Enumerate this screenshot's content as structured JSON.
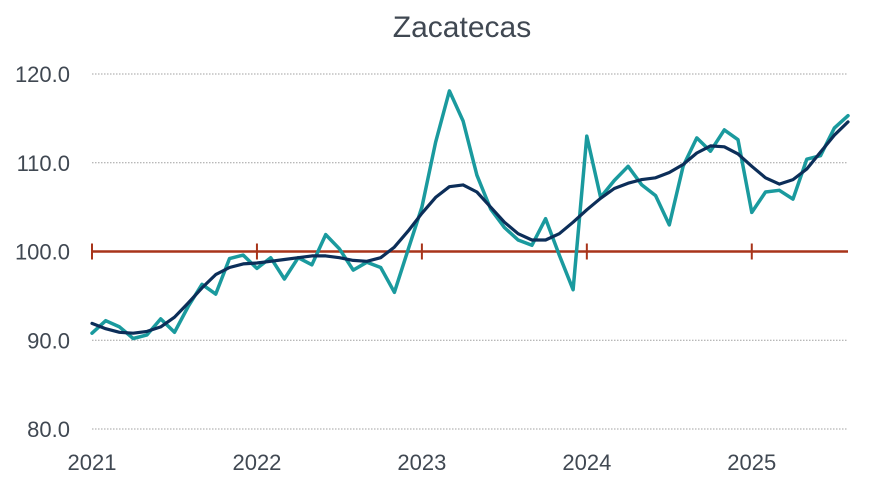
{
  "chart_data": {
    "type": "line",
    "title": "Zacatecas",
    "xlabel": "",
    "ylabel": "",
    "x_tick_labels": [
      "2021",
      "2022",
      "2023",
      "2024",
      "2025"
    ],
    "x_tick_dates": [
      2021,
      2022,
      2023,
      2024,
      2025
    ],
    "y_tick_labels": [
      "80.0",
      "90.0",
      "100.0",
      "110.0",
      "120.0"
    ],
    "y_tick_values": [
      80,
      90,
      100,
      110,
      120
    ],
    "xlim": [
      "2021-01",
      "2025-08"
    ],
    "ylim": [
      80,
      120
    ],
    "grid": "horizontal dotted",
    "legend": "none",
    "x": [
      "2021-01",
      "2021-02",
      "2021-03",
      "2021-04",
      "2021-05",
      "2021-06",
      "2021-07",
      "2021-08",
      "2021-09",
      "2021-10",
      "2021-11",
      "2021-12",
      "2022-01",
      "2022-02",
      "2022-03",
      "2022-04",
      "2022-05",
      "2022-06",
      "2022-07",
      "2022-08",
      "2022-09",
      "2022-10",
      "2022-11",
      "2022-12",
      "2023-01",
      "2023-02",
      "2023-03",
      "2023-04",
      "2023-05",
      "2023-06",
      "2023-07",
      "2023-08",
      "2023-09",
      "2023-10",
      "2023-11",
      "2023-12",
      "2024-01",
      "2024-02",
      "2024-03",
      "2024-04",
      "2024-05",
      "2024-06",
      "2024-07",
      "2024-08",
      "2024-09",
      "2024-10",
      "2024-11",
      "2024-12",
      "2025-01",
      "2025-02",
      "2025-03",
      "2025-04",
      "2025-05",
      "2025-06",
      "2025-07",
      "2025-08"
    ],
    "series": [
      {
        "color": "#1a9a9e",
        "values": [
          90.8,
          92.2,
          91.5,
          90.2,
          90.6,
          92.4,
          90.9,
          93.8,
          96.3,
          95.2,
          99.2,
          99.6,
          98.1,
          99.3,
          96.9,
          99.3,
          98.5,
          101.9,
          100.3,
          97.9,
          98.8,
          98.2,
          95.4,
          100.2,
          105.0,
          112.3,
          118.1,
          114.7,
          108.6,
          104.8,
          102.7,
          101.3,
          100.7,
          103.7,
          99.6,
          95.7,
          113.0,
          106.1,
          108.0,
          109.6,
          107.5,
          106.3,
          103.0,
          109.6,
          112.8,
          111.3,
          113.7,
          112.6,
          104.4,
          106.7,
          106.9,
          105.9,
          110.4,
          110.8,
          113.9,
          115.3
        ]
      },
      {
        "color": "#0c2e59",
        "values": [
          91.9,
          91.3,
          90.9,
          90.8,
          91.0,
          91.5,
          92.6,
          94.2,
          95.9,
          97.4,
          98.2,
          98.6,
          98.7,
          98.9,
          99.1,
          99.3,
          99.5,
          99.5,
          99.3,
          99.0,
          98.9,
          99.3,
          100.5,
          102.3,
          104.3,
          106.1,
          107.3,
          107.5,
          106.7,
          105.0,
          103.3,
          102.0,
          101.3,
          101.3,
          102.0,
          103.3,
          104.7,
          106.0,
          107.1,
          107.7,
          108.1,
          108.3,
          108.9,
          109.8,
          111.1,
          111.9,
          111.8,
          111.0,
          109.6,
          108.3,
          107.6,
          108.1,
          109.3,
          111.2,
          113.1,
          114.6
        ]
      }
    ],
    "reference_line": {
      "value": 100,
      "color": "#a8341a"
    }
  }
}
